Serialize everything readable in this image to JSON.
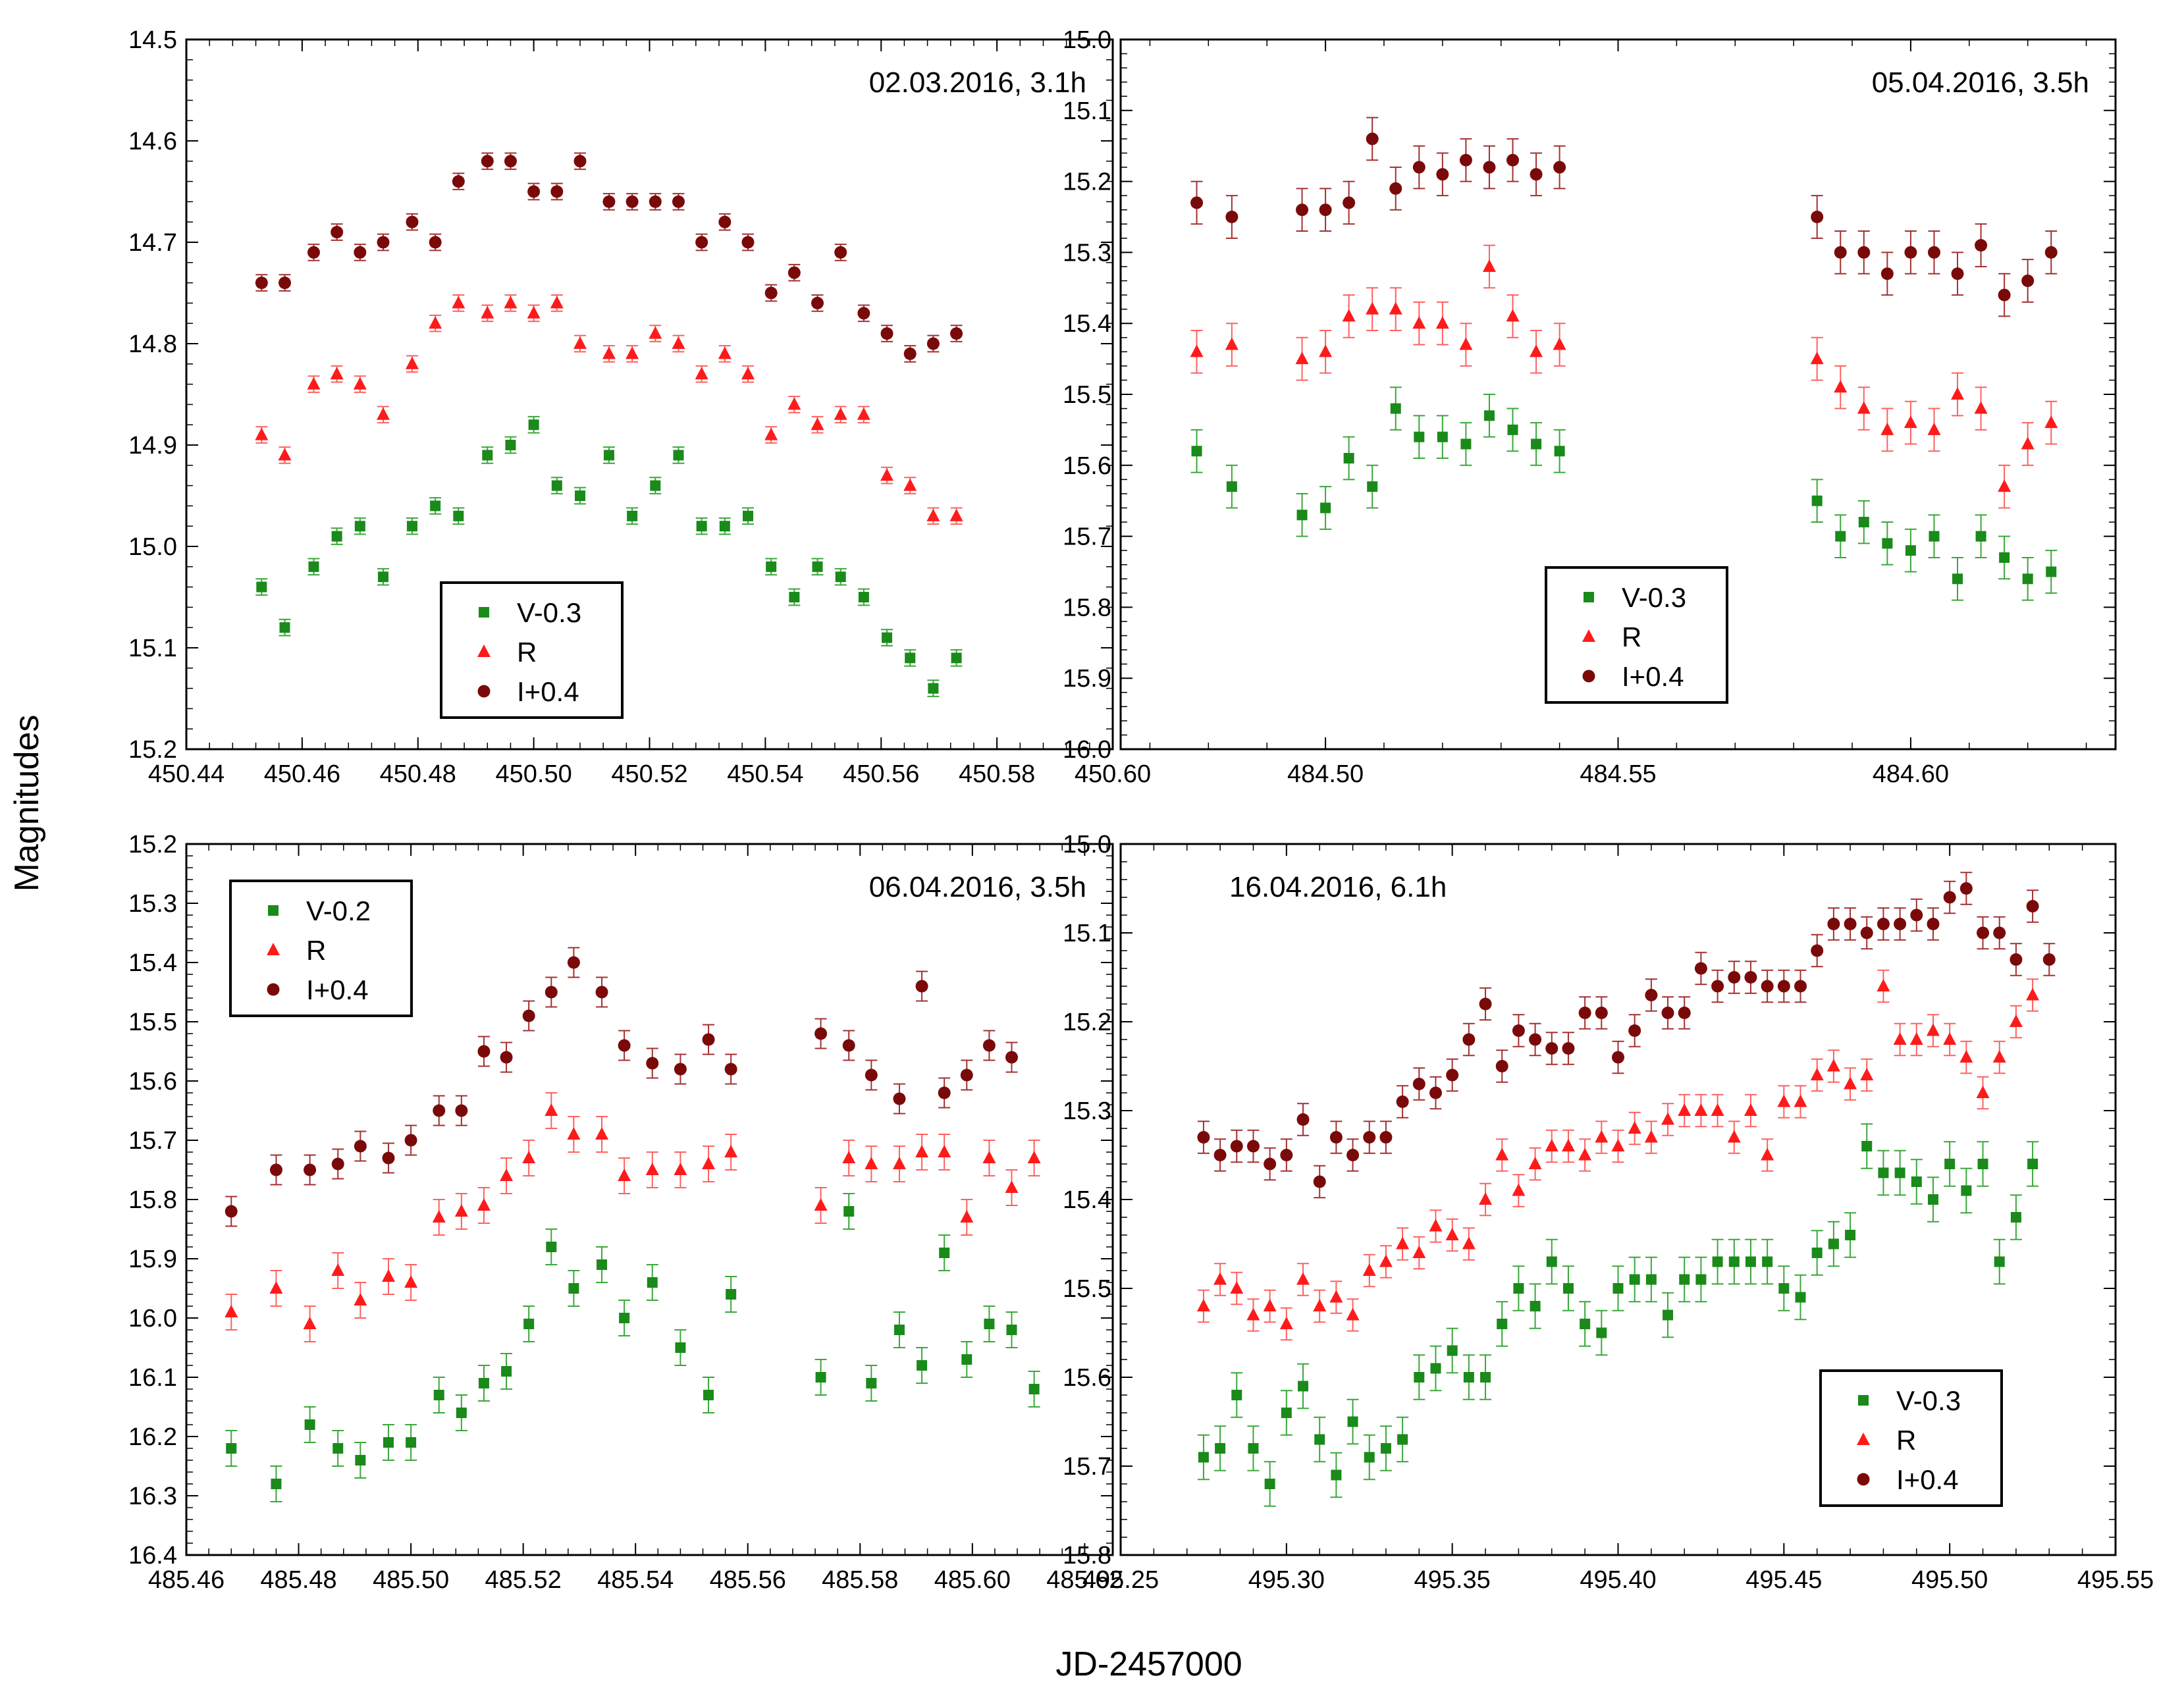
{
  "figure": {
    "xlabel": "JD-2457000",
    "ylabel": "Magnitudes",
    "colors": {
      "V": "#1a8a1a",
      "R": "#ff1a1a",
      "I": "#7a0a0a",
      "R_err": "#ff6060",
      "I_err": "#a33030",
      "V_err": "#39a839"
    }
  },
  "chart_data": [
    {
      "type": "scatter",
      "title": "02.03.2016, 3.1h",
      "xlim": [
        450.44,
        450.6
      ],
      "ylim": [
        15.2,
        14.5
      ],
      "xticks": [
        450.44,
        450.46,
        450.48,
        450.5,
        450.52,
        450.54,
        450.56,
        450.58,
        450.6
      ],
      "xtick_labels": [
        "450.44",
        "450.46",
        "450.48",
        "450.50",
        "450.52",
        "450.54",
        "450.56",
        "450.58",
        "450.60"
      ],
      "yticks": [
        14.5,
        14.6,
        14.7,
        14.8,
        14.9,
        15.0,
        15.1,
        15.2
      ],
      "ytick_labels": [
        "14.5",
        "14.6",
        "14.7",
        "14.8",
        "14.9",
        "15.0",
        "15.1",
        "15.2"
      ],
      "legend": {
        "position": "lower-center",
        "entries": [
          "V-0.3",
          "R",
          "I+0.4"
        ]
      },
      "x": [
        450.453,
        450.457,
        450.462,
        450.466,
        450.47,
        450.474,
        450.479,
        450.483,
        450.487,
        450.492,
        450.496,
        450.5,
        450.504,
        450.508,
        450.513,
        450.517,
        450.521,
        450.525,
        450.529,
        450.533,
        450.537,
        450.541,
        450.545,
        450.549,
        450.553,
        450.557,
        450.561,
        450.565,
        450.569,
        450.573,
        450.577,
        450.581
      ],
      "series": [
        {
          "name": "V-0.3",
          "marker": "square",
          "err": 0.008,
          "values": [
            15.04,
            15.08,
            15.02,
            14.99,
            14.98,
            15.03,
            14.98,
            14.96,
            14.97,
            14.91,
            14.9,
            14.88,
            14.94,
            14.95,
            14.91,
            14.97,
            14.94,
            14.91,
            14.98,
            14.98,
            14.97,
            15.02,
            15.05,
            15.02,
            15.03,
            15.05,
            15.09,
            15.11,
            15.14,
            15.11,
            null,
            null
          ]
        },
        {
          "name": "R",
          "marker": "triangle",
          "err": 0.008,
          "values": [
            14.89,
            14.91,
            14.84,
            14.83,
            14.84,
            14.87,
            14.82,
            14.78,
            14.76,
            14.77,
            14.76,
            14.77,
            14.76,
            14.8,
            14.81,
            14.81,
            14.79,
            14.8,
            14.83,
            14.81,
            14.83,
            14.89,
            14.86,
            14.88,
            14.87,
            14.87,
            14.93,
            14.94,
            14.97,
            14.97,
            null,
            null
          ]
        },
        {
          "name": "I+0.4",
          "marker": "circle",
          "err": 0.008,
          "values": [
            14.74,
            14.74,
            14.71,
            14.69,
            14.71,
            14.7,
            14.68,
            14.7,
            14.64,
            14.62,
            14.62,
            14.65,
            14.65,
            14.62,
            14.66,
            14.66,
            14.66,
            14.66,
            14.7,
            14.68,
            14.7,
            14.75,
            14.73,
            14.76,
            14.71,
            14.77,
            14.79,
            14.81,
            14.8,
            14.79,
            null,
            null
          ]
        }
      ]
    },
    {
      "type": "scatter",
      "title": "05.04.2016, 3.5h",
      "xlim": [
        484.465,
        484.635
      ],
      "ylim": [
        16.0,
        15.0
      ],
      "xticks": [
        484.5,
        484.55,
        484.6
      ],
      "xtick_labels": [
        "484.50",
        "484.55",
        "484.60"
      ],
      "yticks": [
        15.0,
        15.1,
        15.2,
        15.3,
        15.4,
        15.5,
        15.6,
        15.7,
        15.8,
        15.9,
        16.0
      ],
      "ytick_labels": [
        "15.0",
        "15.1",
        "15.2",
        "15.3",
        "15.4",
        "15.5",
        "15.6",
        "15.7",
        "15.8",
        "15.9",
        "16.0"
      ],
      "legend": {
        "position": "lower-center",
        "entries": [
          "V-0.3",
          "R",
          "I+0.4"
        ]
      },
      "x": [
        484.478,
        484.484,
        484.496,
        484.5,
        484.504,
        484.508,
        484.512,
        484.516,
        484.52,
        484.524,
        484.528,
        484.532,
        484.536,
        484.54,
        484.544,
        484.548,
        484.584,
        484.588,
        484.592,
        484.596,
        484.6,
        484.604,
        484.608,
        484.612,
        484.616,
        484.62,
        484.624
      ],
      "series": [
        {
          "name": "V-0.3",
          "marker": "square",
          "err": 0.03,
          "values": [
            15.58,
            15.63,
            15.67,
            15.66,
            15.59,
            15.63,
            15.52,
            15.56,
            15.56,
            15.57,
            15.53,
            15.55,
            15.57,
            15.58,
            null,
            null,
            15.65,
            15.7,
            15.68,
            15.71,
            15.72,
            15.7,
            15.76,
            15.7,
            15.73,
            15.76,
            15.75
          ]
        },
        {
          "name": "R",
          "marker": "triangle",
          "err": 0.03,
          "values": [
            15.44,
            15.43,
            15.45,
            15.44,
            15.39,
            15.38,
            15.38,
            15.4,
            15.4,
            15.43,
            15.32,
            15.39,
            15.44,
            15.43,
            null,
            null,
            15.45,
            15.49,
            15.52,
            15.55,
            15.54,
            15.55,
            15.5,
            15.52,
            15.63,
            15.57,
            15.54
          ]
        },
        {
          "name": "I+0.4",
          "marker": "circle",
          "err": 0.03,
          "values": [
            15.23,
            15.25,
            15.24,
            15.24,
            15.23,
            15.14,
            15.21,
            15.18,
            15.19,
            15.17,
            15.18,
            15.17,
            15.19,
            15.18,
            null,
            null,
            15.25,
            15.3,
            15.3,
            15.33,
            15.3,
            15.3,
            15.33,
            15.29,
            15.36,
            15.34,
            15.3
          ]
        }
      ]
    },
    {
      "type": "scatter",
      "title": "06.04.2016, 3.5h",
      "xlim": [
        485.46,
        485.625
      ],
      "ylim": [
        16.4,
        15.2
      ],
      "xticks": [
        485.46,
        485.48,
        485.5,
        485.52,
        485.54,
        485.56,
        485.58,
        485.6,
        485.62
      ],
      "xtick_labels": [
        "485.46",
        "485.48",
        "485.50",
        "485.52",
        "485.54",
        "485.56",
        "485.58",
        "485.60",
        "485.62"
      ],
      "yticks": [
        15.2,
        15.3,
        15.4,
        15.5,
        15.6,
        15.7,
        15.8,
        15.9,
        16.0,
        16.1,
        16.2,
        16.3,
        16.4
      ],
      "ytick_labels": [
        "15.2",
        "15.3",
        "15.4",
        "15.5",
        "15.6",
        "15.7",
        "15.8",
        "15.9",
        "16.0",
        "16.1",
        "16.2",
        "16.3",
        "16.4"
      ],
      "legend": {
        "position": "top-left",
        "entries": [
          "V-0.2",
          "R",
          "I+0.4"
        ]
      },
      "x": [
        485.468,
        485.476,
        485.482,
        485.487,
        485.491,
        485.496,
        485.5,
        485.505,
        485.509,
        485.513,
        485.517,
        485.521,
        485.525,
        485.529,
        485.534,
        485.538,
        485.543,
        485.548,
        485.553,
        485.557,
        485.573,
        485.578,
        485.582,
        485.587,
        485.591,
        485.595,
        485.599,
        485.603,
        485.607,
        485.611,
        485.615
      ],
      "series": [
        {
          "name": "V-0.2",
          "marker": "square",
          "err": 0.03,
          "values": [
            16.22,
            16.28,
            16.18,
            16.22,
            16.24,
            16.21,
            16.21,
            16.13,
            16.16,
            16.11,
            16.09,
            16.01,
            15.88,
            15.95,
            15.91,
            16.0,
            15.94,
            16.05,
            16.13,
            15.96,
            16.1,
            15.82,
            16.11,
            16.02,
            16.08,
            15.89,
            16.07,
            16.01,
            16.02,
            16.12,
            null
          ]
        },
        {
          "name": "R",
          "marker": "triangle",
          "err": 0.03,
          "values": [
            15.99,
            15.95,
            16.01,
            15.92,
            15.97,
            15.93,
            15.94,
            15.83,
            15.82,
            15.81,
            15.76,
            15.73,
            15.65,
            15.69,
            15.69,
            15.76,
            15.75,
            15.75,
            15.74,
            15.72,
            15.81,
            15.73,
            15.74,
            15.74,
            15.72,
            15.72,
            15.83,
            15.73,
            15.78,
            15.73,
            null
          ]
        },
        {
          "name": "I+0.4",
          "marker": "circle",
          "err": 0.025,
          "values": [
            15.82,
            15.75,
            15.75,
            15.74,
            15.71,
            15.73,
            15.7,
            15.65,
            15.65,
            15.55,
            15.56,
            15.49,
            15.45,
            15.4,
            15.45,
            15.54,
            15.57,
            15.58,
            15.53,
            15.58,
            15.52,
            15.54,
            15.59,
            15.63,
            15.44,
            15.62,
            15.59,
            15.54,
            15.56,
            null,
            null
          ]
        }
      ]
    },
    {
      "type": "scatter",
      "title": "16.04.2016, 6.1h",
      "xlim": [
        495.25,
        495.55
      ],
      "ylim": [
        15.8,
        15.0
      ],
      "xticks": [
        495.25,
        495.3,
        495.35,
        495.4,
        495.45,
        495.5,
        495.55
      ],
      "xtick_labels": [
        "495.25",
        "495.30",
        "495.35",
        "495.40",
        "495.45",
        "495.50",
        "495.55"
      ],
      "yticks": [
        15.0,
        15.1,
        15.2,
        15.3,
        15.4,
        15.5,
        15.6,
        15.7,
        15.8
      ],
      "ytick_labels": [
        "15.0",
        "15.1",
        "15.2",
        "15.3",
        "15.4",
        "15.5",
        "15.6",
        "15.7",
        "15.8"
      ],
      "legend": {
        "position": "lower-right",
        "entries": [
          "V-0.3",
          "R",
          "I+0.4"
        ]
      },
      "x": [
        495.275,
        495.28,
        495.285,
        495.29,
        495.295,
        495.3,
        495.305,
        495.31,
        495.315,
        495.32,
        495.325,
        495.33,
        495.335,
        495.34,
        495.345,
        495.35,
        495.355,
        495.36,
        495.365,
        495.37,
        495.375,
        495.38,
        495.385,
        495.39,
        495.395,
        495.4,
        495.405,
        495.41,
        495.415,
        495.42,
        495.425,
        495.43,
        495.435,
        495.44,
        495.445,
        495.45,
        495.455,
        495.46,
        495.465,
        495.47,
        495.475,
        495.48,
        495.485,
        495.49,
        495.495,
        495.5,
        495.505,
        495.51,
        495.515,
        495.52,
        495.525,
        495.53
      ],
      "series": [
        {
          "name": "V-0.3",
          "marker": "square",
          "err": 0.025,
          "values": [
            15.69,
            15.68,
            15.62,
            15.68,
            15.72,
            15.64,
            15.61,
            15.67,
            15.71,
            15.65,
            15.69,
            15.68,
            15.67,
            15.6,
            15.59,
            15.57,
            15.6,
            15.6,
            15.54,
            15.5,
            15.52,
            15.47,
            15.5,
            15.54,
            15.55,
            15.5,
            15.49,
            15.49,
            15.53,
            15.49,
            15.49,
            15.47,
            15.47,
            15.47,
            15.47,
            15.5,
            15.51,
            15.46,
            15.45,
            15.44,
            15.34,
            15.37,
            15.37,
            15.38,
            15.4,
            15.36,
            15.39,
            15.36,
            15.47,
            15.42,
            15.36,
            null
          ]
        },
        {
          "name": "R",
          "marker": "triangle",
          "err": 0.018,
          "values": [
            15.52,
            15.49,
            15.5,
            15.53,
            15.52,
            15.54,
            15.49,
            15.52,
            15.51,
            15.53,
            15.48,
            15.47,
            15.45,
            15.46,
            15.43,
            15.44,
            15.45,
            15.4,
            15.35,
            15.39,
            15.36,
            15.34,
            15.34,
            15.35,
            15.33,
            15.34,
            15.32,
            15.33,
            15.31,
            15.3,
            15.3,
            15.3,
            15.33,
            15.3,
            15.35,
            15.29,
            15.29,
            15.26,
            15.25,
            15.27,
            15.26,
            15.16,
            15.22,
            15.22,
            15.21,
            15.22,
            15.24,
            15.28,
            15.24,
            15.2,
            15.17,
            null
          ]
        },
        {
          "name": "I+0.4",
          "marker": "circle",
          "err": 0.018,
          "values": [
            15.33,
            15.35,
            15.34,
            15.34,
            15.36,
            15.35,
            15.31,
            15.38,
            15.33,
            15.35,
            15.33,
            15.33,
            15.29,
            15.27,
            15.28,
            15.26,
            15.22,
            15.18,
            15.25,
            15.21,
            15.22,
            15.23,
            15.23,
            15.19,
            15.19,
            15.24,
            15.21,
            15.17,
            15.19,
            15.19,
            15.14,
            15.16,
            15.15,
            15.15,
            15.16,
            15.16,
            15.16,
            15.12,
            15.09,
            15.09,
            15.1,
            15.09,
            15.09,
            15.08,
            15.09,
            15.06,
            15.05,
            15.1,
            15.1,
            15.13,
            15.07,
            15.13
          ]
        }
      ]
    }
  ]
}
